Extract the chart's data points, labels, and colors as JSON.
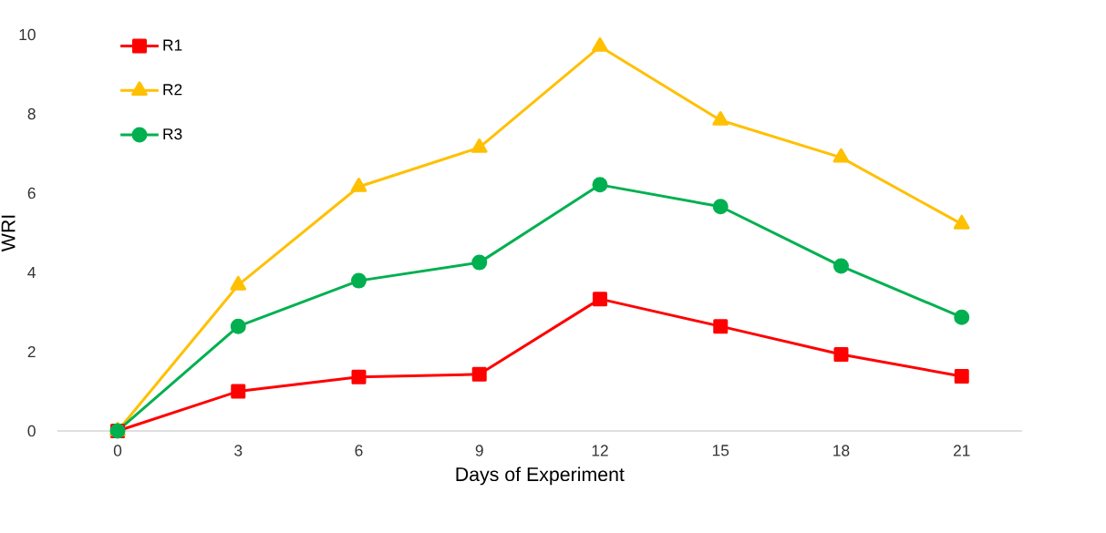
{
  "chart_data": {
    "type": "line",
    "xlabel": "Days of Experiment",
    "ylabel": "WRI",
    "categories": [
      "0",
      "3",
      "6",
      "9",
      "12",
      "15",
      "18",
      "21"
    ],
    "series": [
      {
        "name": "R1",
        "color": "#ff0000",
        "marker": "square",
        "values": [
          0,
          1.0,
          1.36,
          1.43,
          3.33,
          2.64,
          1.93,
          1.38
        ]
      },
      {
        "name": "R2",
        "color": "#ffc000",
        "marker": "triangle",
        "values": [
          0,
          3.68,
          6.16,
          7.15,
          9.7,
          7.84,
          6.9,
          5.22
        ]
      },
      {
        "name": "R3",
        "color": "#00b050",
        "marker": "circle",
        "values": [
          0,
          2.64,
          3.79,
          4.25,
          6.21,
          5.66,
          4.16,
          2.87
        ]
      }
    ],
    "ylim": [
      0,
      10
    ],
    "yticks": [
      0,
      2,
      4,
      6,
      8,
      10
    ],
    "grid": false,
    "legend": "top left",
    "line_style": "solid"
  }
}
